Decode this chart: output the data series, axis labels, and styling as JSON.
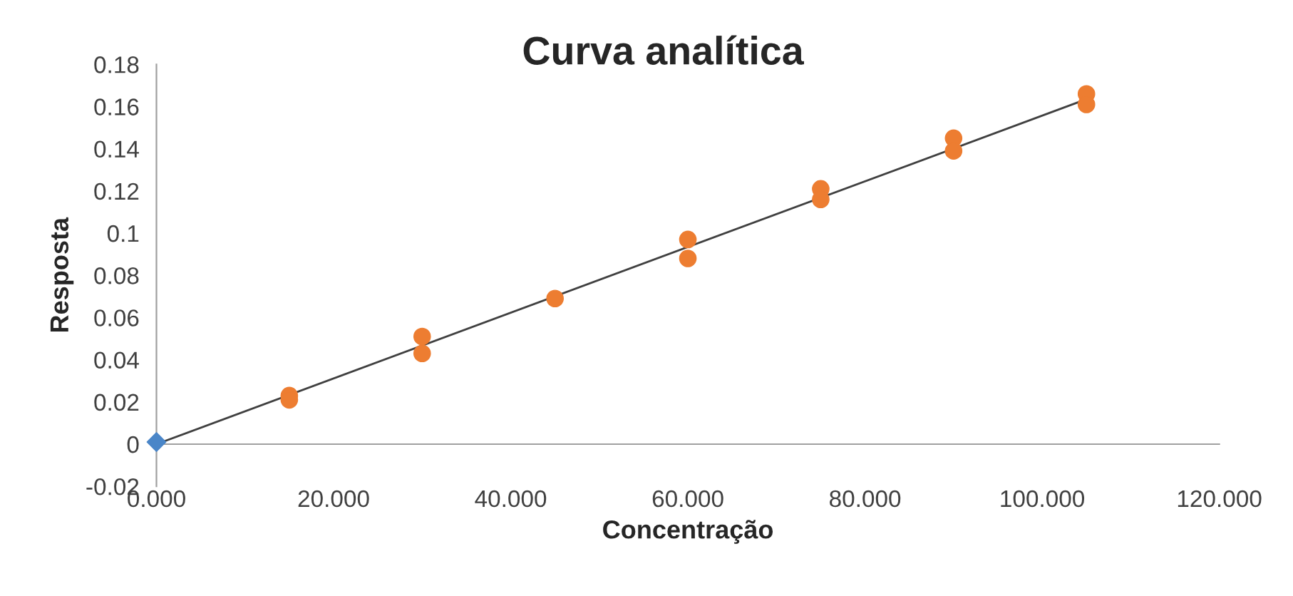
{
  "chart_data": {
    "type": "scatter",
    "title": "Curva analítica",
    "xlabel": "Concentração",
    "ylabel": "Resposta",
    "series": [
      {
        "color": "#4a86c8",
        "marker": "diamond",
        "x": [
          0
        ],
        "values": [
          0.001
        ]
      },
      {
        "color": "#ed7d31",
        "marker": "circle",
        "x": [
          15,
          15,
          30,
          30,
          45,
          60,
          60,
          75,
          75,
          90,
          90,
          105,
          105
        ],
        "values": [
          0.023,
          0.021,
          0.051,
          0.043,
          0.069,
          0.097,
          0.088,
          0.121,
          0.116,
          0.145,
          0.139,
          0.166,
          0.161
        ]
      },
      {
        "type": "line",
        "color": "#404040",
        "marker": "none",
        "x": [
          0,
          105
        ],
        "values": [
          0,
          0.1635
        ]
      }
    ],
    "xlim": [
      0,
      120
    ],
    "ylim": [
      -0.02,
      0.18
    ],
    "xticks": [
      {
        "value": 0,
        "label": "0.000"
      },
      {
        "value": 20,
        "label": "20.000"
      },
      {
        "value": 40,
        "label": "40.000"
      },
      {
        "value": 60,
        "label": "60.000"
      },
      {
        "value": 80,
        "label": "80.000"
      },
      {
        "value": 100,
        "label": "100.000"
      },
      {
        "value": 120,
        "label": "120.000"
      }
    ],
    "yticks": [
      -0.02,
      0,
      0.02,
      0.04,
      0.06,
      0.08,
      0.1,
      0.12,
      0.14,
      0.16,
      0.18
    ],
    "grid": false,
    "legend": false
  }
}
